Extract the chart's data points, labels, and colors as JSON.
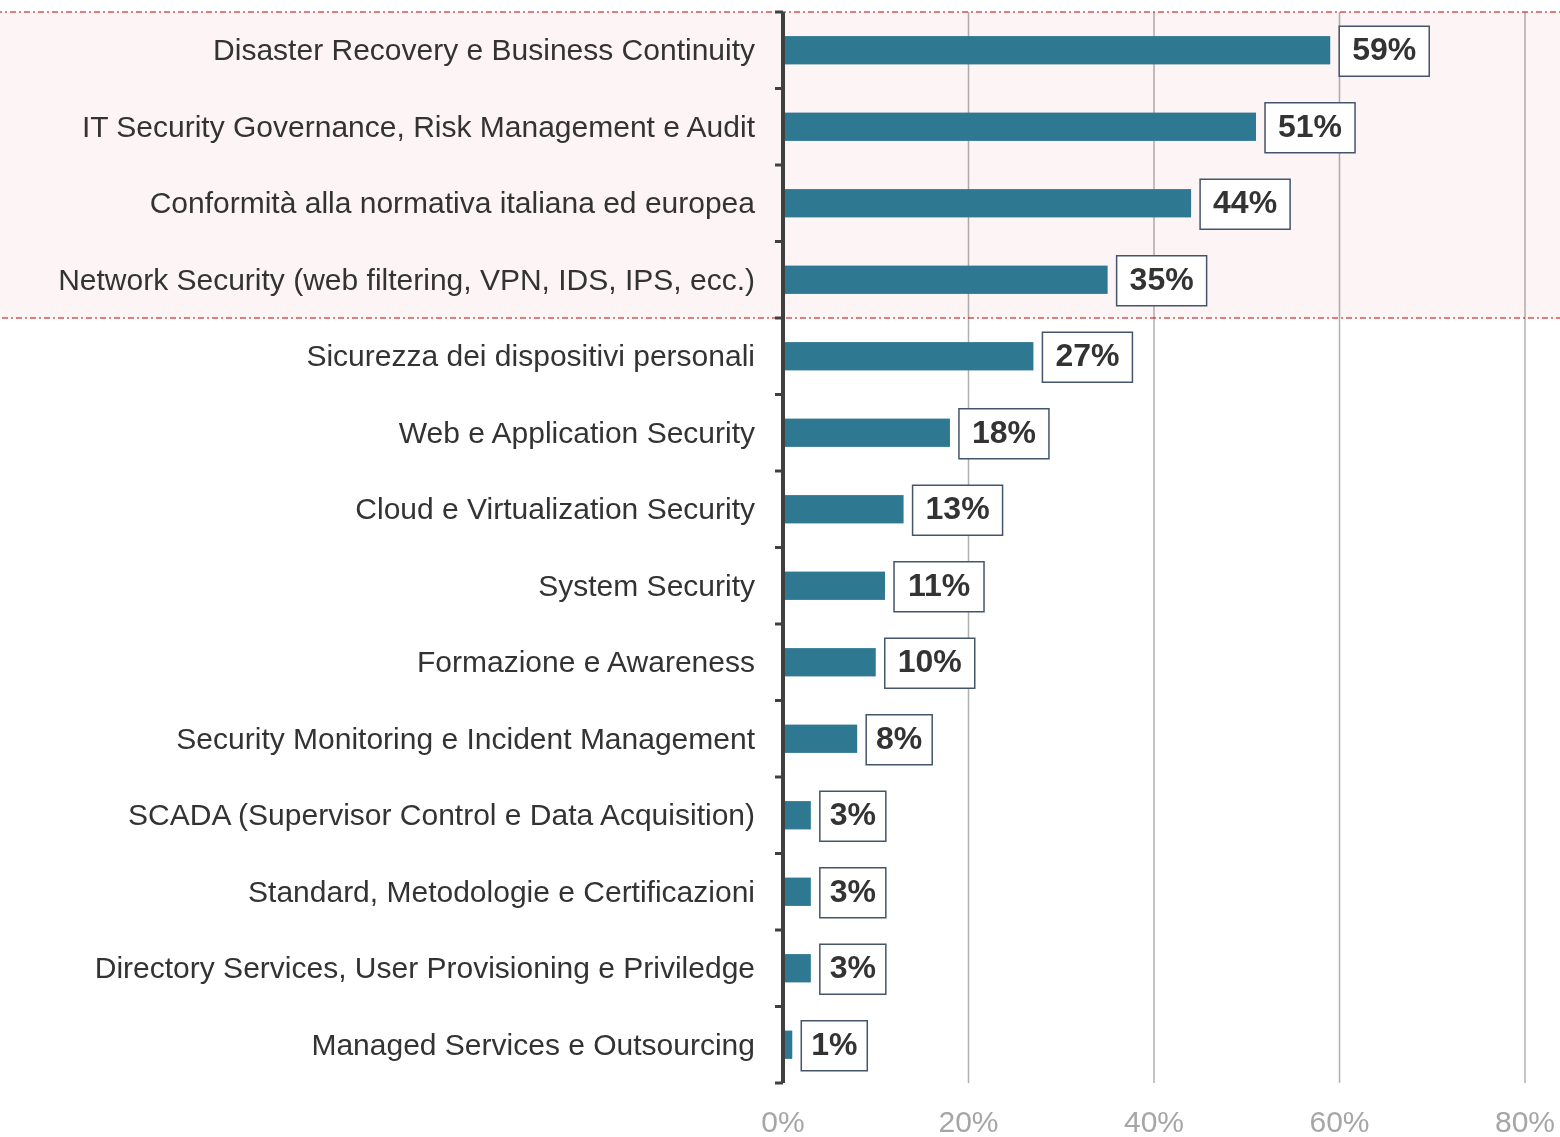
{
  "chart_data": {
    "type": "bar",
    "orientation": "horizontal",
    "categories": [
      "Disaster Recovery e Business Continuity",
      "IT Security Governance, Risk Management e Audit",
      "Conformità alla normativa italiana ed europea",
      "Network Security (web filtering, VPN, IDS, IPS, ecc.)",
      "Sicurezza dei dispositivi personali",
      "Web e Application Security",
      "Cloud e Virtualization Security",
      "System Security",
      "Formazione e Awareness",
      "Security Monitoring e Incident Management",
      "SCADA (Supervisor Control e Data Acquisition)",
      "Standard, Metodologie e Certificazioni",
      "Directory Services, User Provisioning e Priviledge",
      "Managed Services e Outsourcing"
    ],
    "values": [
      59,
      51,
      44,
      35,
      27,
      18,
      13,
      11,
      10,
      8,
      3,
      3,
      3,
      1
    ],
    "value_labels": [
      "59%",
      "51%",
      "44%",
      "35%",
      "27%",
      "18%",
      "13%",
      "11%",
      "10%",
      "8%",
      "3%",
      "3%",
      "3%",
      "1%"
    ],
    "color": "#2e7891",
    "xlim": [
      0,
      80
    ],
    "xticks": [
      {
        "value": 0,
        "label": "0%"
      },
      {
        "value": 20,
        "label": "20%"
      },
      {
        "value": 40,
        "label": "40%"
      },
      {
        "value": 60,
        "label": "60%"
      },
      {
        "value": 80,
        "label": "80%"
      }
    ],
    "grid": "x",
    "bands": [
      {
        "axis": "y",
        "from": "Disaster Recovery e Business Continuity",
        "to": "Network Security (web filtering, VPN, IDS, IPS, ecc.)",
        "color": "#c00000"
      }
    ]
  }
}
